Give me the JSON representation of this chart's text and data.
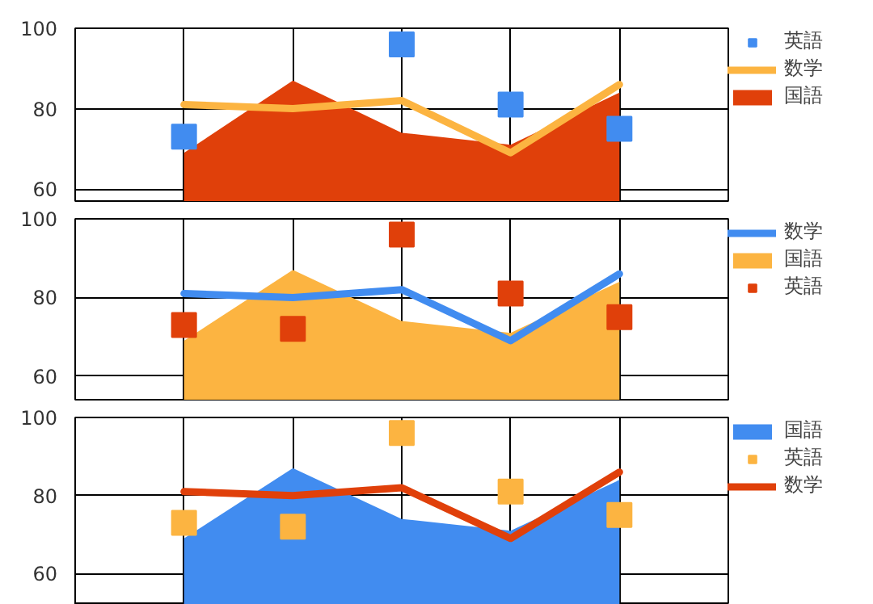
{
  "chart_data": [
    {
      "type": "area",
      "categories": [
        null,
        null,
        null,
        null,
        null
      ],
      "ylim": [
        57,
        100
      ],
      "yticks": [
        60,
        80,
        100
      ],
      "grid": true,
      "legend": "top right",
      "tick_labels": "y",
      "series": [
        {
          "name": "英語",
          "type": "scatter",
          "marker": "square",
          "color": "#418cf0",
          "values": [
            73,
            null,
            96,
            81,
            75
          ]
        },
        {
          "name": "数学",
          "type": "line",
          "color": "#fcb441",
          "values": [
            81,
            80,
            82,
            69,
            86
          ]
        },
        {
          "name": "国語",
          "color": "#e0400a",
          "values": [
            69,
            87,
            74,
            71,
            84
          ]
        }
      ]
    },
    {
      "type": "area",
      "categories": [
        null,
        null,
        null,
        null,
        null
      ],
      "ylim": [
        54,
        100
      ],
      "yticks": [
        60,
        80,
        100
      ],
      "grid": true,
      "legend": "top right",
      "tick_labels": "y",
      "series": [
        {
          "name": "数学",
          "type": "line",
          "color": "#418cf0",
          "values": [
            81,
            80,
            82,
            69,
            86
          ]
        },
        {
          "name": "国語",
          "color": "#fcb441",
          "values": [
            69,
            87,
            74,
            71,
            84
          ]
        },
        {
          "name": "英語",
          "type": "scatter",
          "marker": "square",
          "color": "#e0400a",
          "values": [
            73,
            72,
            96,
            81,
            75
          ]
        }
      ]
    },
    {
      "type": "area",
      "categories": [
        null,
        null,
        null,
        null,
        null
      ],
      "ylim": [
        52,
        100
      ],
      "yticks": [
        60,
        80,
        100
      ],
      "grid": true,
      "legend": "top right",
      "tick_labels": "y",
      "series": [
        {
          "name": "国語",
          "color": "#418cf0",
          "values": [
            69,
            87,
            74,
            71,
            84
          ]
        },
        {
          "name": "英語",
          "type": "scatter",
          "marker": "square",
          "color": "#fcb441",
          "values": [
            73,
            72,
            96,
            81,
            75
          ]
        },
        {
          "name": "数学",
          "type": "line",
          "color": "#e0400a",
          "values": [
            81,
            80,
            82,
            69,
            86
          ]
        }
      ]
    }
  ]
}
